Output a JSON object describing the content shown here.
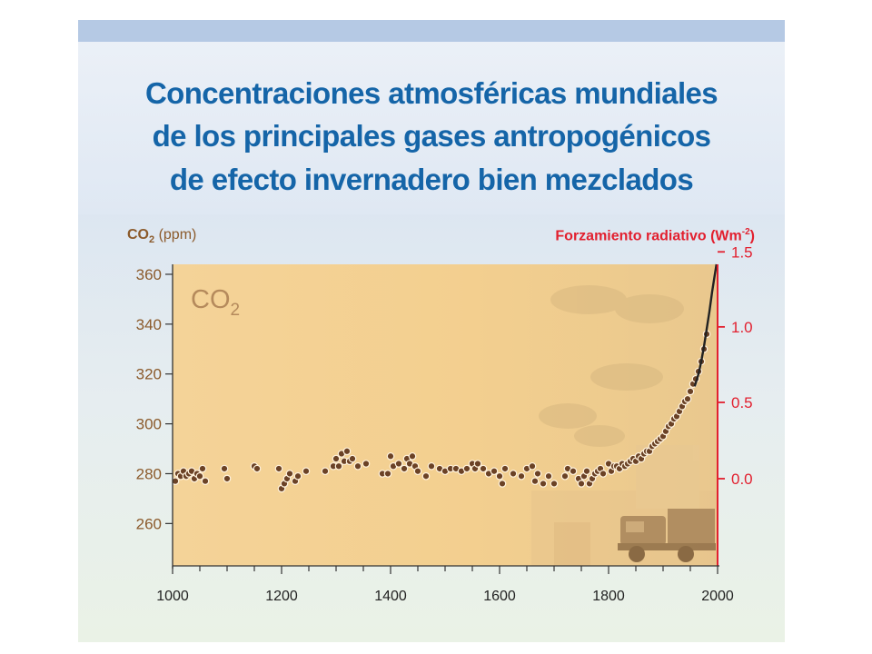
{
  "title": {
    "line1": "Concentraciones atmosféricas mundiales",
    "line2": "de los principales gases antropogénicos",
    "line3": "de efecto invernadero bien mezclados"
  },
  "colors": {
    "title": "#1565a8",
    "left_axis": "#8b5a2b",
    "right_axis": "#e2202f",
    "plot_bg": "#f3cf8f",
    "points": "#6b4226"
  },
  "chart_data": {
    "type": "scatter",
    "gas_label_main": "CO",
    "gas_label_sub": "2",
    "ylabel_left": {
      "main": "CO",
      "sub": "2",
      "unit": "(ppm)"
    },
    "ylabel_right": {
      "main": "Forzamiento radiativo (Wm",
      "sup": "-2",
      "end": ")"
    },
    "xlim": [
      1000,
      2000
    ],
    "ylim": [
      243,
      364
    ],
    "x_ticks": [
      1000,
      1200,
      1400,
      1600,
      1800,
      2000
    ],
    "y_ticks_left": [
      260,
      280,
      300,
      320,
      340,
      360
    ],
    "y_ticks_right": [
      {
        "label": "0.0",
        "ppm": 278
      },
      {
        "label": "0.5",
        "ppm": 308.6
      },
      {
        "label": "1.0",
        "ppm": 338.9
      },
      {
        "label": "1.5",
        "ppm": 369
      }
    ],
    "grid": false,
    "series": [
      {
        "type": "scatter",
        "points": [
          [
            1005,
            277
          ],
          [
            1010,
            280
          ],
          [
            1015,
            279
          ],
          [
            1020,
            281
          ],
          [
            1025,
            279
          ],
          [
            1030,
            280
          ],
          [
            1035,
            281
          ],
          [
            1040,
            278
          ],
          [
            1045,
            280
          ],
          [
            1050,
            279
          ],
          [
            1055,
            282
          ],
          [
            1060,
            277
          ],
          [
            1095,
            282
          ],
          [
            1100,
            278
          ],
          [
            1150,
            283
          ],
          [
            1155,
            282
          ],
          [
            1195,
            282
          ],
          [
            1200,
            274
          ],
          [
            1205,
            276
          ],
          [
            1210,
            278
          ],
          [
            1215,
            280
          ],
          [
            1225,
            277
          ],
          [
            1230,
            279
          ],
          [
            1245,
            281
          ],
          [
            1280,
            281
          ],
          [
            1295,
            283
          ],
          [
            1300,
            286
          ],
          [
            1305,
            283
          ],
          [
            1310,
            288
          ],
          [
            1315,
            285
          ],
          [
            1320,
            289
          ],
          [
            1325,
            285
          ],
          [
            1330,
            286
          ],
          [
            1340,
            283
          ],
          [
            1355,
            284
          ],
          [
            1385,
            280
          ],
          [
            1395,
            280
          ],
          [
            1400,
            287
          ],
          [
            1405,
            283
          ],
          [
            1415,
            284
          ],
          [
            1425,
            282
          ],
          [
            1430,
            286
          ],
          [
            1435,
            284
          ],
          [
            1440,
            287
          ],
          [
            1445,
            283
          ],
          [
            1450,
            281
          ],
          [
            1465,
            279
          ],
          [
            1475,
            283
          ],
          [
            1490,
            282
          ],
          [
            1500,
            281
          ],
          [
            1510,
            282
          ],
          [
            1520,
            282
          ],
          [
            1530,
            281
          ],
          [
            1540,
            282
          ],
          [
            1550,
            284
          ],
          [
            1555,
            282
          ],
          [
            1560,
            284
          ],
          [
            1570,
            282
          ],
          [
            1580,
            280
          ],
          [
            1590,
            281
          ],
          [
            1600,
            279
          ],
          [
            1605,
            276
          ],
          [
            1610,
            282
          ],
          [
            1625,
            280
          ],
          [
            1640,
            279
          ],
          [
            1650,
            282
          ],
          [
            1660,
            283
          ],
          [
            1665,
            277
          ],
          [
            1670,
            280
          ],
          [
            1680,
            276
          ],
          [
            1690,
            279
          ],
          [
            1700,
            276
          ],
          [
            1720,
            279
          ],
          [
            1725,
            282
          ],
          [
            1735,
            281
          ],
          [
            1745,
            278
          ],
          [
            1750,
            276
          ],
          [
            1755,
            279
          ],
          [
            1760,
            281
          ],
          [
            1765,
            276
          ],
          [
            1770,
            278
          ],
          [
            1775,
            280
          ],
          [
            1780,
            281
          ],
          [
            1785,
            282
          ],
          [
            1790,
            280
          ],
          [
            1800,
            284
          ],
          [
            1805,
            281
          ],
          [
            1810,
            283
          ],
          [
            1815,
            283
          ],
          [
            1820,
            282
          ],
          [
            1825,
            284
          ],
          [
            1830,
            283
          ],
          [
            1835,
            284
          ],
          [
            1840,
            285
          ],
          [
            1845,
            286
          ],
          [
            1850,
            285
          ],
          [
            1855,
            287
          ],
          [
            1860,
            286
          ],
          [
            1865,
            288
          ],
          [
            1870,
            289
          ],
          [
            1875,
            289
          ],
          [
            1880,
            291
          ],
          [
            1885,
            292
          ],
          [
            1890,
            293
          ],
          [
            1895,
            294
          ],
          [
            1900,
            295
          ],
          [
            1905,
            297
          ],
          [
            1910,
            299
          ],
          [
            1915,
            300
          ],
          [
            1920,
            302
          ],
          [
            1925,
            303
          ],
          [
            1930,
            305
          ],
          [
            1935,
            307
          ],
          [
            1940,
            309
          ],
          [
            1945,
            310
          ],
          [
            1950,
            313
          ],
          [
            1955,
            316
          ],
          [
            1960,
            318
          ],
          [
            1965,
            321
          ],
          [
            1970,
            325
          ],
          [
            1975,
            330
          ],
          [
            1980,
            336
          ]
        ]
      },
      {
        "type": "line",
        "points": [
          [
            1958,
            315
          ],
          [
            1965,
            320
          ],
          [
            1970,
            325
          ],
          [
            1975,
            331
          ],
          [
            1980,
            338
          ],
          [
            1985,
            345
          ],
          [
            1990,
            353
          ],
          [
            1995,
            360
          ],
          [
            1998,
            364
          ]
        ]
      }
    ]
  }
}
